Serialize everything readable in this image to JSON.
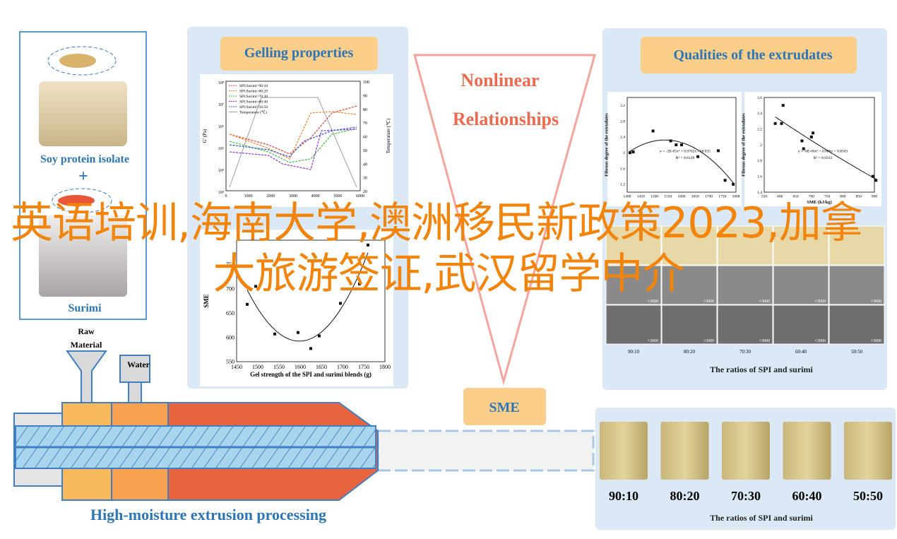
{
  "spi_label": "Soy protein isolate",
  "plus": "+",
  "surimi_label": "Surimi",
  "gelling": {
    "title": "Gelling properties",
    "rheology_chart": {
      "y_label": "G' (Pa)",
      "y2_label": "Temperature (℃)",
      "x_ticks": [
        "0",
        "1000",
        "2000",
        "3000",
        "4000",
        "5000",
        "6000"
      ],
      "y_ticks": [
        "10⁸",
        "10⁷",
        "10⁶",
        "10⁵",
        "10⁴",
        "10³"
      ],
      "y2_ticks": [
        "100",
        "90",
        "80",
        "70",
        "60",
        "50",
        "40",
        "30",
        "20"
      ],
      "legend": [
        {
          "name": "SPI:Surimi=90:10",
          "color": "#e84b3c"
        },
        {
          "name": "SPI:Surimi=80:20",
          "color": "#f08a3c"
        },
        {
          "name": "SPI:Surimi=70:30",
          "color": "#4fc34f"
        },
        {
          "name": "SPI:Surimi=60:40",
          "color": "#8e3fd6"
        },
        {
          "name": "SPI:Surimi=50:50",
          "color": "#3b5fd6"
        },
        {
          "name": "Temperature (℃)",
          "color": "#9e9e9e"
        }
      ]
    },
    "sme_chart": {
      "x_label": "Gel strength of the SPI and surimi blends (g)",
      "y_label": "SME",
      "xlim": [
        1450,
        1800
      ],
      "xticks": [
        1450,
        1500,
        1550,
        1600,
        1650,
        1700,
        1750,
        1800
      ],
      "ylim": [
        550,
        800
      ],
      "yticks": [
        550,
        600,
        650,
        700,
        750
      ],
      "x": [
        1475,
        1495,
        1540,
        1595,
        1625,
        1645,
        1695,
        1740,
        1760
      ],
      "y": [
        668,
        705,
        607,
        610,
        577,
        603,
        670,
        710,
        790
      ]
    }
  },
  "nonlinear": [
    "Nonlinear",
    "Relationships"
  ],
  "qualities": {
    "title": "Qualities of the extrudates",
    "chart1": {
      "y_label": "Fibrous degree of the extrudates",
      "equation": "y = -2E-05x² + 0.0762x - 58.035",
      "r2": "R² = 0.8139",
      "xlim": [
        1400,
        1800
      ],
      "xticks": [
        1400,
        1450,
        1500,
        1550,
        1600,
        1650,
        1700,
        1750,
        1800
      ],
      "ylim": [
        1.0,
        3.4
      ],
      "yticks": [
        1.2,
        1.6,
        2.0,
        2.4,
        2.8,
        3.2
      ],
      "x": [
        1410,
        1422,
        1495,
        1560,
        1580,
        1600,
        1660,
        1735,
        1760,
        1790
      ],
      "y": [
        2.0,
        2.02,
        2.55,
        2.3,
        2.2,
        2.2,
        1.9,
        2.05,
        1.3,
        1.2
      ]
    },
    "chart2": {
      "y_label": "Fibrous degree of the extrudates",
      "x_label": "SME (kJ/kg)",
      "equation": "y = -6E-06x² + 0.006x + 0.8503",
      "r2": "R² = 0.9333",
      "xlim": [
        550,
        900
      ],
      "xticks": [
        550,
        600,
        650,
        700,
        750,
        800,
        850,
        900
      ],
      "ylim": [
        1.4,
        2.6
      ],
      "yticks": [
        1.4,
        1.6,
        1.8,
        2.0,
        2.2,
        2.4,
        2.6
      ],
      "x": [
        585,
        605,
        610,
        670,
        675,
        700,
        705,
        895,
        905
      ],
      "y": [
        2.27,
        2.27,
        2.5,
        2.05,
        1.95,
        2.1,
        2.15,
        1.6,
        1.55
      ]
    },
    "sem_magnification": "×3000",
    "ratios": [
      "90:10",
      "80:20",
      "70:30",
      "60:40",
      "50:50"
    ],
    "caption": "The ratios of SPI and surimi"
  },
  "sme": "SME",
  "raw_material": [
    "Raw",
    "Material"
  ],
  "water": "Water",
  "process_label": "High-moisture extrusion processing",
  "samples": {
    "ratios": [
      "90:10",
      "80:20",
      "70:30",
      "60:40",
      "50:50"
    ],
    "caption": "The ratios of SPI and surimi"
  },
  "overlay": "英语培训,海南大学,澳洲移民新政策2023,加拿大旅游签证,武汉留学中介"
}
